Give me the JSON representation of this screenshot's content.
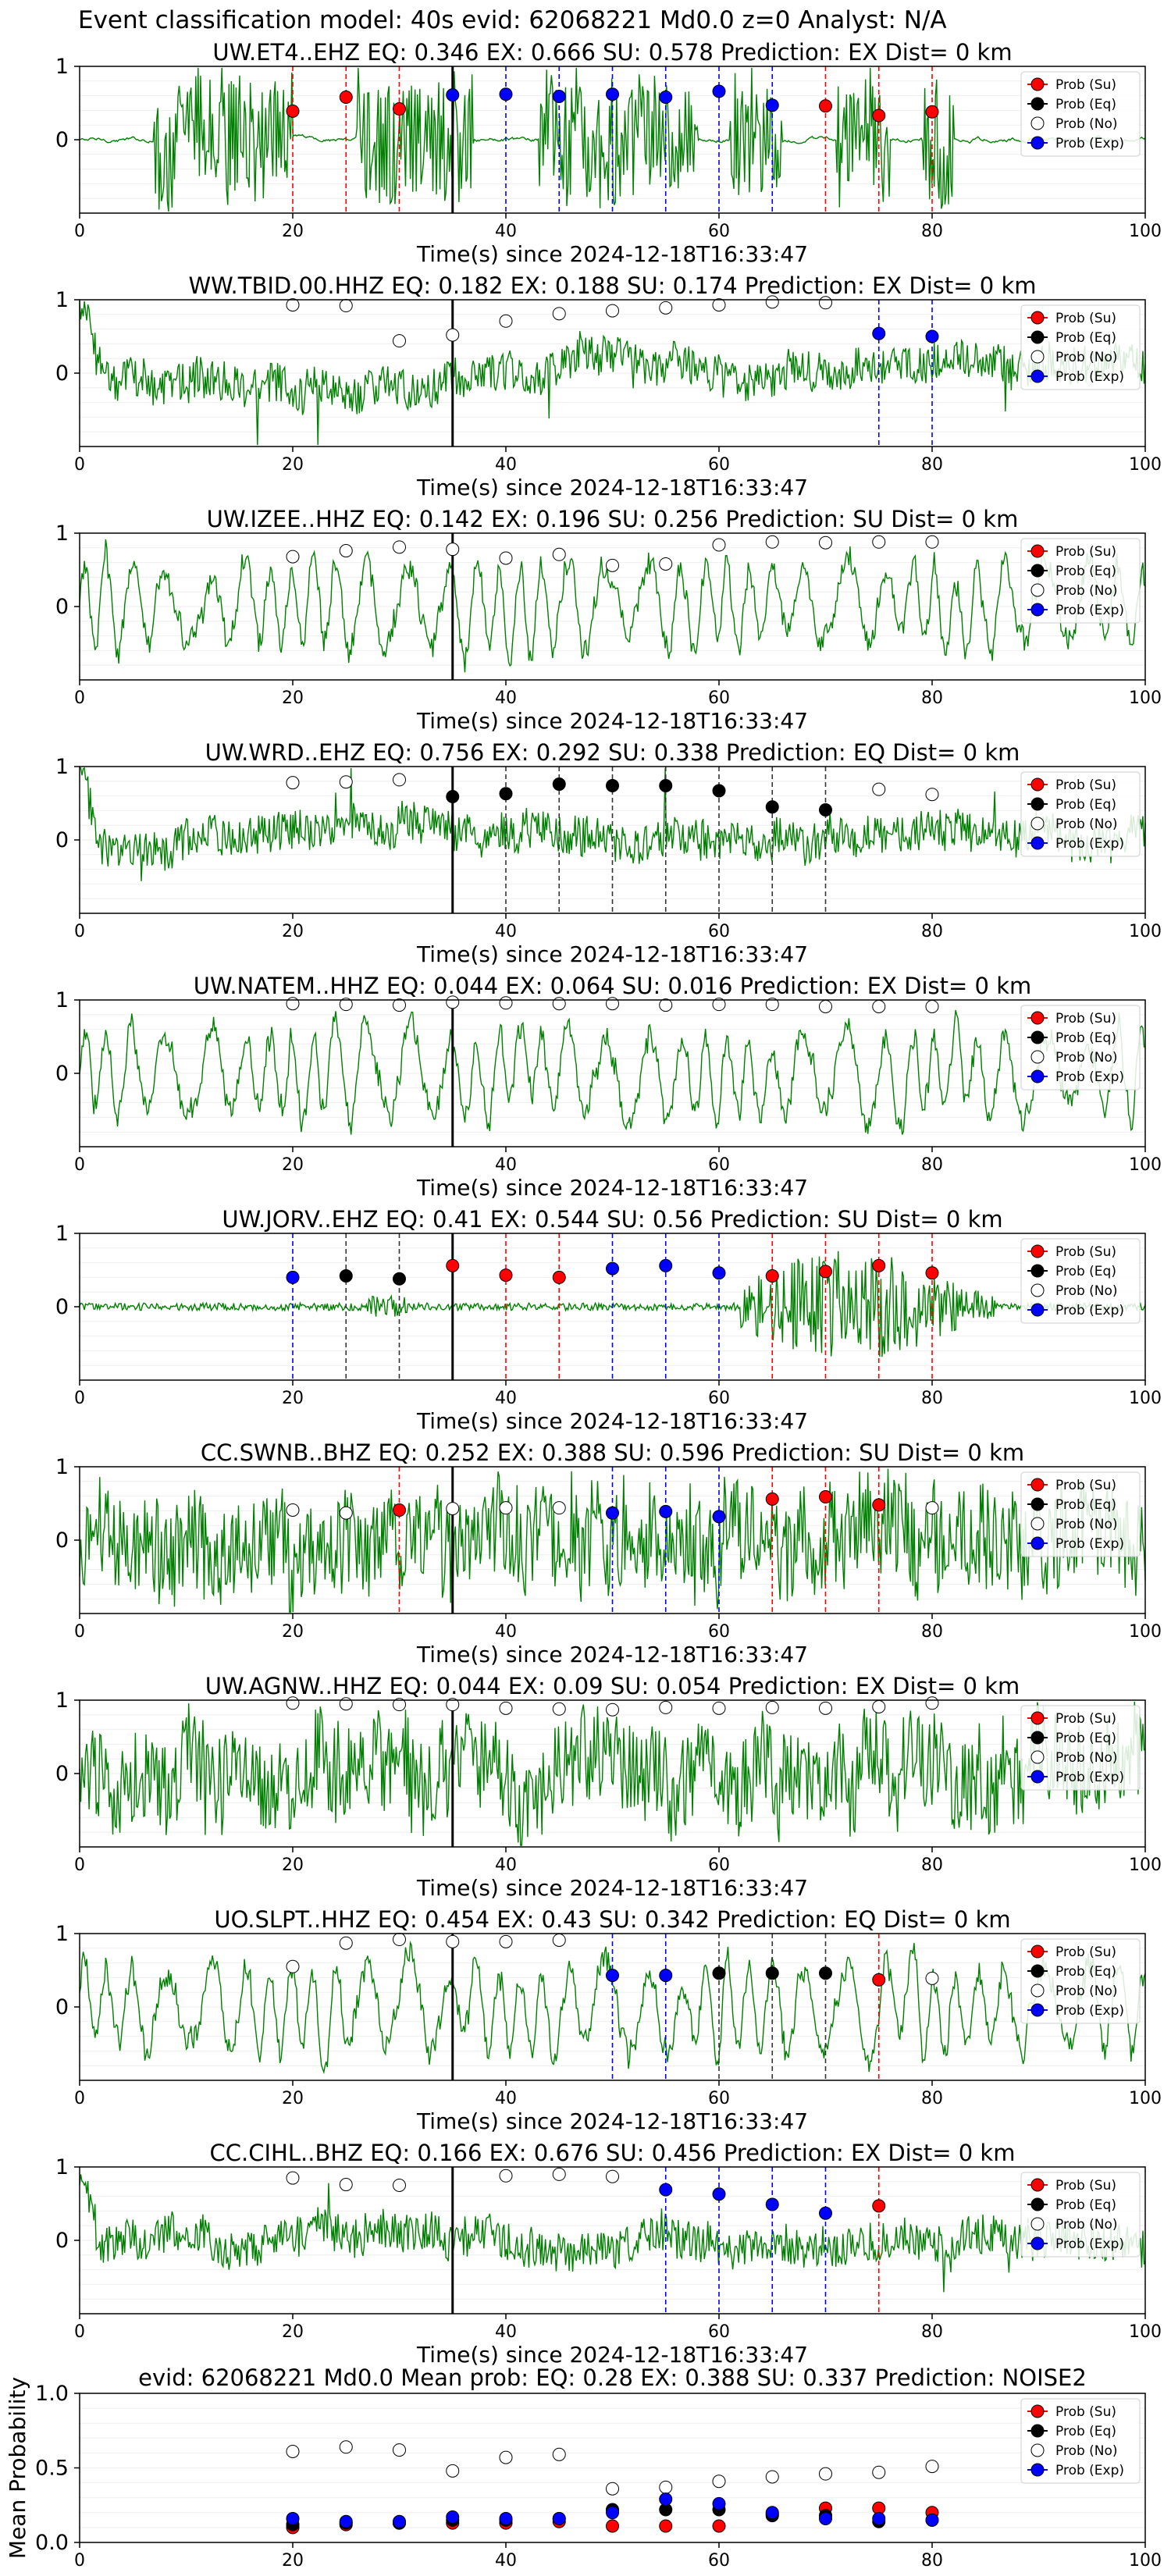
{
  "suptitle": "Event classification model: 40s evid: 62068221 Md0.0 z=0 Analyst: N/A",
  "colors": {
    "trace": "#008000",
    "su": "#ff0000",
    "eq": "#000000",
    "no": "#ffffff",
    "exp": "#0000ff",
    "vline_su": "#ff0000",
    "vline_eq": "#333333",
    "vline_exp": "#0000ff",
    "pick": "#000000"
  },
  "legend_labels": [
    "Prob (Su)",
    "Prob (Eq)",
    "Prob (No)",
    "Prob (Exp)"
  ],
  "chart_data": [
    {
      "type": "line",
      "title": "UW.ET4..EHZ   EQ: 0.346  EX: 0.666  SU: 0.578   Prediction: EX    Dist= 0 km",
      "xlabel": "Time(s) since 2024-12-18T16:33:47",
      "ylabel": "",
      "xlim": [
        0,
        100
      ],
      "ylim": [
        -1,
        1
      ],
      "xticks": [
        "0",
        "20",
        "40",
        "60",
        "80",
        "100"
      ],
      "yticks": [
        "1",
        "0"
      ],
      "legend": "top-right",
      "pick_time": 35,
      "waveform_style": "bursts",
      "points": [
        {
          "t": 20,
          "p": 0.39,
          "cls": "su"
        },
        {
          "t": 25,
          "p": 0.58,
          "cls": "su"
        },
        {
          "t": 30,
          "p": 0.42,
          "cls": "su"
        },
        {
          "t": 35,
          "p": 0.61,
          "cls": "exp"
        },
        {
          "t": 40,
          "p": 0.62,
          "cls": "exp"
        },
        {
          "t": 45,
          "p": 0.59,
          "cls": "exp"
        },
        {
          "t": 50,
          "p": 0.62,
          "cls": "exp"
        },
        {
          "t": 55,
          "p": 0.58,
          "cls": "exp"
        },
        {
          "t": 60,
          "p": 0.66,
          "cls": "exp"
        },
        {
          "t": 65,
          "p": 0.47,
          "cls": "exp"
        },
        {
          "t": 70,
          "p": 0.46,
          "cls": "su"
        },
        {
          "t": 75,
          "p": 0.33,
          "cls": "su"
        },
        {
          "t": 80,
          "p": 0.38,
          "cls": "su"
        }
      ]
    },
    {
      "type": "line",
      "title": "WW.TBID.00.HHZ   EQ: 0.182  EX: 0.188  SU: 0.174   Prediction: EX    Dist= 0 km",
      "xlabel": "Time(s) since 2024-12-18T16:33:47",
      "ylabel": "",
      "xlim": [
        0,
        100
      ],
      "ylim": [
        -1,
        1
      ],
      "xticks": [
        "0",
        "20",
        "40",
        "60",
        "80",
        "100"
      ],
      "yticks": [
        "1",
        "0"
      ],
      "legend": "top-right",
      "pick_time": 35,
      "waveform_style": "noise",
      "points": [
        {
          "t": 20,
          "p": 0.93,
          "cls": "no"
        },
        {
          "t": 25,
          "p": 0.92,
          "cls": "no"
        },
        {
          "t": 30,
          "p": 0.44,
          "cls": "no"
        },
        {
          "t": 35,
          "p": 0.52,
          "cls": "no"
        },
        {
          "t": 40,
          "p": 0.71,
          "cls": "no"
        },
        {
          "t": 45,
          "p": 0.81,
          "cls": "no"
        },
        {
          "t": 50,
          "p": 0.85,
          "cls": "no"
        },
        {
          "t": 55,
          "p": 0.89,
          "cls": "no"
        },
        {
          "t": 60,
          "p": 0.93,
          "cls": "no"
        },
        {
          "t": 65,
          "p": 0.97,
          "cls": "no"
        },
        {
          "t": 70,
          "p": 0.96,
          "cls": "no"
        },
        {
          "t": 75,
          "p": 0.54,
          "cls": "exp"
        },
        {
          "t": 80,
          "p": 0.5,
          "cls": "exp"
        }
      ]
    },
    {
      "type": "line",
      "title": "UW.IZEE..HHZ   EQ: 0.142  EX: 0.196  SU: 0.256   Prediction: SU    Dist= 0 km",
      "xlabel": "Time(s) since 2024-12-18T16:33:47",
      "ylabel": "",
      "xlim": [
        0,
        100
      ],
      "ylim": [
        -1,
        1
      ],
      "xticks": [
        "0",
        "20",
        "40",
        "60",
        "80",
        "100"
      ],
      "yticks": [
        "1",
        "0"
      ],
      "legend": "top-right",
      "pick_time": 35,
      "waveform_style": "oscillation",
      "points": [
        {
          "t": 20,
          "p": 0.68,
          "cls": "no"
        },
        {
          "t": 25,
          "p": 0.76,
          "cls": "no"
        },
        {
          "t": 30,
          "p": 0.81,
          "cls": "no"
        },
        {
          "t": 35,
          "p": 0.78,
          "cls": "no"
        },
        {
          "t": 40,
          "p": 0.66,
          "cls": "no"
        },
        {
          "t": 45,
          "p": 0.71,
          "cls": "no"
        },
        {
          "t": 50,
          "p": 0.56,
          "cls": "no"
        },
        {
          "t": 55,
          "p": 0.58,
          "cls": "no"
        },
        {
          "t": 60,
          "p": 0.84,
          "cls": "no"
        },
        {
          "t": 65,
          "p": 0.88,
          "cls": "no"
        },
        {
          "t": 70,
          "p": 0.87,
          "cls": "no"
        },
        {
          "t": 75,
          "p": 0.88,
          "cls": "no"
        },
        {
          "t": 80,
          "p": 0.88,
          "cls": "no"
        }
      ]
    },
    {
      "type": "line",
      "title": "UW.WRD..EHZ   EQ: 0.756  EX: 0.292  SU: 0.338   Prediction: EQ    Dist= 0 km",
      "xlabel": "Time(s) since 2024-12-18T16:33:47",
      "ylabel": "",
      "xlim": [
        0,
        100
      ],
      "ylim": [
        -1,
        1
      ],
      "xticks": [
        "0",
        "20",
        "40",
        "60",
        "80",
        "100"
      ],
      "yticks": [
        "1",
        "0"
      ],
      "legend": "top-right",
      "pick_time": 35,
      "waveform_style": "noise",
      "points": [
        {
          "t": 20,
          "p": 0.78,
          "cls": "no"
        },
        {
          "t": 25,
          "p": 0.79,
          "cls": "no"
        },
        {
          "t": 30,
          "p": 0.82,
          "cls": "no"
        },
        {
          "t": 35,
          "p": 0.59,
          "cls": "eq"
        },
        {
          "t": 40,
          "p": 0.63,
          "cls": "eq"
        },
        {
          "t": 45,
          "p": 0.76,
          "cls": "eq"
        },
        {
          "t": 50,
          "p": 0.74,
          "cls": "eq"
        },
        {
          "t": 55,
          "p": 0.74,
          "cls": "eq"
        },
        {
          "t": 60,
          "p": 0.67,
          "cls": "eq"
        },
        {
          "t": 65,
          "p": 0.45,
          "cls": "eq"
        },
        {
          "t": 70,
          "p": 0.41,
          "cls": "eq"
        },
        {
          "t": 75,
          "p": 0.69,
          "cls": "no"
        },
        {
          "t": 80,
          "p": 0.62,
          "cls": "no"
        }
      ]
    },
    {
      "type": "line",
      "title": "UW.NATEM..HHZ   EQ: 0.044  EX: 0.064  SU: 0.016   Prediction: EX    Dist= 0 km",
      "xlabel": "Time(s) since 2024-12-18T16:33:47",
      "ylabel": "",
      "xlim": [
        0,
        100
      ],
      "ylim": [
        -1,
        1
      ],
      "xticks": [
        "0",
        "20",
        "40",
        "60",
        "80",
        "100"
      ],
      "yticks": [
        "1",
        "0"
      ],
      "legend": "top-right",
      "pick_time": 35,
      "waveform_style": "oscillation",
      "points": [
        {
          "t": 20,
          "p": 0.95,
          "cls": "no"
        },
        {
          "t": 25,
          "p": 0.94,
          "cls": "no"
        },
        {
          "t": 30,
          "p": 0.93,
          "cls": "no"
        },
        {
          "t": 35,
          "p": 0.97,
          "cls": "no"
        },
        {
          "t": 40,
          "p": 0.96,
          "cls": "no"
        },
        {
          "t": 45,
          "p": 0.95,
          "cls": "no"
        },
        {
          "t": 50,
          "p": 0.95,
          "cls": "no"
        },
        {
          "t": 55,
          "p": 0.93,
          "cls": "no"
        },
        {
          "t": 60,
          "p": 0.94,
          "cls": "no"
        },
        {
          "t": 65,
          "p": 0.94,
          "cls": "no"
        },
        {
          "t": 70,
          "p": 0.91,
          "cls": "no"
        },
        {
          "t": 75,
          "p": 0.91,
          "cls": "no"
        },
        {
          "t": 80,
          "p": 0.91,
          "cls": "no"
        }
      ]
    },
    {
      "type": "line",
      "title": "UW.JORV..EHZ   EQ: 0.41  EX: 0.544  SU: 0.56   Prediction: SU    Dist= 0 km",
      "xlabel": "Time(s) since 2024-12-18T16:33:47",
      "ylabel": "",
      "xlim": [
        0,
        100
      ],
      "ylim": [
        -1,
        1
      ],
      "xticks": [
        "0",
        "20",
        "40",
        "60",
        "80",
        "100"
      ],
      "yticks": [
        "1",
        "0"
      ],
      "legend": "top-right",
      "pick_time": 35,
      "waveform_style": "late_event",
      "points": [
        {
          "t": 20,
          "p": 0.4,
          "cls": "exp"
        },
        {
          "t": 25,
          "p": 0.42,
          "cls": "eq"
        },
        {
          "t": 30,
          "p": 0.38,
          "cls": "eq"
        },
        {
          "t": 35,
          "p": 0.56,
          "cls": "su"
        },
        {
          "t": 40,
          "p": 0.43,
          "cls": "su"
        },
        {
          "t": 45,
          "p": 0.4,
          "cls": "su"
        },
        {
          "t": 50,
          "p": 0.52,
          "cls": "exp"
        },
        {
          "t": 55,
          "p": 0.56,
          "cls": "exp"
        },
        {
          "t": 60,
          "p": 0.46,
          "cls": "exp"
        },
        {
          "t": 65,
          "p": 0.42,
          "cls": "su"
        },
        {
          "t": 70,
          "p": 0.48,
          "cls": "su"
        },
        {
          "t": 75,
          "p": 0.56,
          "cls": "su"
        },
        {
          "t": 80,
          "p": 0.46,
          "cls": "su"
        }
      ]
    },
    {
      "type": "line",
      "title": "CC.SWNB..BHZ   EQ: 0.252  EX: 0.388  SU: 0.596   Prediction: SU    Dist= 0 km",
      "xlabel": "Time(s) since 2024-12-18T16:33:47",
      "ylabel": "",
      "xlim": [
        0,
        100
      ],
      "ylim": [
        -1,
        1
      ],
      "xticks": [
        "0",
        "20",
        "40",
        "60",
        "80",
        "100"
      ],
      "yticks": [
        "1",
        "0"
      ],
      "legend": "top-right",
      "pick_time": 35,
      "waveform_style": "dense",
      "points": [
        {
          "t": 20,
          "p": 0.41,
          "cls": "no"
        },
        {
          "t": 25,
          "p": 0.37,
          "cls": "no"
        },
        {
          "t": 30,
          "p": 0.41,
          "cls": "su"
        },
        {
          "t": 35,
          "p": 0.43,
          "cls": "no"
        },
        {
          "t": 40,
          "p": 0.44,
          "cls": "no"
        },
        {
          "t": 45,
          "p": 0.44,
          "cls": "no"
        },
        {
          "t": 50,
          "p": 0.37,
          "cls": "exp"
        },
        {
          "t": 55,
          "p": 0.39,
          "cls": "exp"
        },
        {
          "t": 60,
          "p": 0.32,
          "cls": "exp"
        },
        {
          "t": 65,
          "p": 0.56,
          "cls": "su"
        },
        {
          "t": 70,
          "p": 0.59,
          "cls": "su"
        },
        {
          "t": 75,
          "p": 0.48,
          "cls": "su"
        },
        {
          "t": 80,
          "p": 0.44,
          "cls": "no"
        }
      ]
    },
    {
      "type": "line",
      "title": "UW.AGNW..HHZ   EQ: 0.044  EX: 0.09  SU: 0.054   Prediction: EX    Dist= 0 km",
      "xlabel": "Time(s) since 2024-12-18T16:33:47",
      "ylabel": "",
      "xlim": [
        0,
        100
      ],
      "ylim": [
        -1,
        1
      ],
      "xticks": [
        "0",
        "20",
        "40",
        "60",
        "80",
        "100"
      ],
      "yticks": [
        "1",
        "0"
      ],
      "legend": "top-right",
      "pick_time": 35,
      "waveform_style": "dense",
      "points": [
        {
          "t": 20,
          "p": 0.96,
          "cls": "no"
        },
        {
          "t": 25,
          "p": 0.95,
          "cls": "no"
        },
        {
          "t": 30,
          "p": 0.94,
          "cls": "no"
        },
        {
          "t": 35,
          "p": 0.94,
          "cls": "no"
        },
        {
          "t": 40,
          "p": 0.89,
          "cls": "no"
        },
        {
          "t": 45,
          "p": 0.88,
          "cls": "no"
        },
        {
          "t": 50,
          "p": 0.87,
          "cls": "no"
        },
        {
          "t": 55,
          "p": 0.9,
          "cls": "no"
        },
        {
          "t": 60,
          "p": 0.89,
          "cls": "no"
        },
        {
          "t": 65,
          "p": 0.9,
          "cls": "no"
        },
        {
          "t": 70,
          "p": 0.89,
          "cls": "no"
        },
        {
          "t": 75,
          "p": 0.91,
          "cls": "no"
        },
        {
          "t": 80,
          "p": 0.96,
          "cls": "no"
        }
      ]
    },
    {
      "type": "line",
      "title": "UO.SLPT..HHZ   EQ: 0.454  EX: 0.43  SU: 0.342   Prediction: EQ    Dist= 0 km",
      "xlabel": "Time(s) since 2024-12-18T16:33:47",
      "ylabel": "",
      "xlim": [
        0,
        100
      ],
      "ylim": [
        -1,
        1
      ],
      "xticks": [
        "0",
        "20",
        "40",
        "60",
        "80",
        "100"
      ],
      "yticks": [
        "1",
        "0"
      ],
      "legend": "top-right",
      "pick_time": 35,
      "waveform_style": "oscillation",
      "points": [
        {
          "t": 20,
          "p": 0.55,
          "cls": "no"
        },
        {
          "t": 25,
          "p": 0.87,
          "cls": "no"
        },
        {
          "t": 30,
          "p": 0.92,
          "cls": "no"
        },
        {
          "t": 35,
          "p": 0.89,
          "cls": "no"
        },
        {
          "t": 40,
          "p": 0.89,
          "cls": "no"
        },
        {
          "t": 45,
          "p": 0.91,
          "cls": "no"
        },
        {
          "t": 50,
          "p": 0.43,
          "cls": "exp"
        },
        {
          "t": 55,
          "p": 0.43,
          "cls": "exp"
        },
        {
          "t": 60,
          "p": 0.46,
          "cls": "eq"
        },
        {
          "t": 65,
          "p": 0.46,
          "cls": "eq"
        },
        {
          "t": 70,
          "p": 0.46,
          "cls": "eq"
        },
        {
          "t": 75,
          "p": 0.37,
          "cls": "su"
        },
        {
          "t": 80,
          "p": 0.39,
          "cls": "no"
        }
      ]
    },
    {
      "type": "line",
      "title": "CC.CIHL..BHZ   EQ: 0.166  EX: 0.676  SU: 0.456   Prediction: EX    Dist= 0 km",
      "xlabel": "Time(s) since 2024-12-18T16:33:47",
      "ylabel": "",
      "xlim": [
        0,
        100
      ],
      "ylim": [
        -1,
        1
      ],
      "xticks": [
        "0",
        "20",
        "40",
        "60",
        "80",
        "100"
      ],
      "yticks": [
        "1",
        "0"
      ],
      "legend": "top-right",
      "pick_time": 35,
      "waveform_style": "noise",
      "points": [
        {
          "t": 20,
          "p": 0.85,
          "cls": "no"
        },
        {
          "t": 25,
          "p": 0.76,
          "cls": "no"
        },
        {
          "t": 30,
          "p": 0.75,
          "cls": "no"
        },
        {
          "t": 40,
          "p": 0.88,
          "cls": "no"
        },
        {
          "t": 45,
          "p": 0.9,
          "cls": "no"
        },
        {
          "t": 50,
          "p": 0.87,
          "cls": "no"
        },
        {
          "t": 55,
          "p": 0.69,
          "cls": "exp"
        },
        {
          "t": 60,
          "p": 0.63,
          "cls": "exp"
        },
        {
          "t": 65,
          "p": 0.49,
          "cls": "exp"
        },
        {
          "t": 70,
          "p": 0.37,
          "cls": "exp"
        },
        {
          "t": 75,
          "p": 0.47,
          "cls": "su"
        }
      ]
    },
    {
      "type": "scatter",
      "title": "evid: 62068221  Md0.0   Mean prob:   EQ: 0.28  EX: 0.388  SU: 0.337   Prediction: NOISE2",
      "xlabel": "",
      "ylabel": "Mean Probability",
      "xlim": [
        0,
        100
      ],
      "ylim": [
        0,
        1
      ],
      "xticks": [
        "0",
        "20",
        "40",
        "60",
        "80",
        "100"
      ],
      "yticks": [
        "0.0",
        "0.5",
        "1.0"
      ],
      "legend": "top-right",
      "x": [
        20,
        25,
        30,
        35,
        40,
        45,
        50,
        55,
        60,
        65,
        70,
        75,
        80
      ],
      "series": [
        {
          "name": "Prob (Su)",
          "key": "su",
          "values": [
            0.1,
            0.12,
            0.13,
            0.13,
            0.13,
            0.14,
            0.11,
            0.11,
            0.11,
            0.19,
            0.23,
            0.23,
            0.2
          ]
        },
        {
          "name": "Prob (Eq)",
          "key": "eq",
          "values": [
            0.12,
            0.13,
            0.13,
            0.15,
            0.15,
            0.16,
            0.22,
            0.22,
            0.22,
            0.18,
            0.18,
            0.14,
            0.15
          ]
        },
        {
          "name": "Prob (No)",
          "key": "no",
          "values": [
            0.61,
            0.64,
            0.62,
            0.48,
            0.57,
            0.59,
            0.36,
            0.37,
            0.41,
            0.44,
            0.46,
            0.47,
            0.51
          ]
        },
        {
          "name": "Prob (Exp)",
          "key": "exp",
          "values": [
            0.16,
            0.14,
            0.14,
            0.17,
            0.16,
            0.16,
            0.2,
            0.29,
            0.26,
            0.2,
            0.16,
            0.16,
            0.15
          ]
        }
      ]
    }
  ]
}
